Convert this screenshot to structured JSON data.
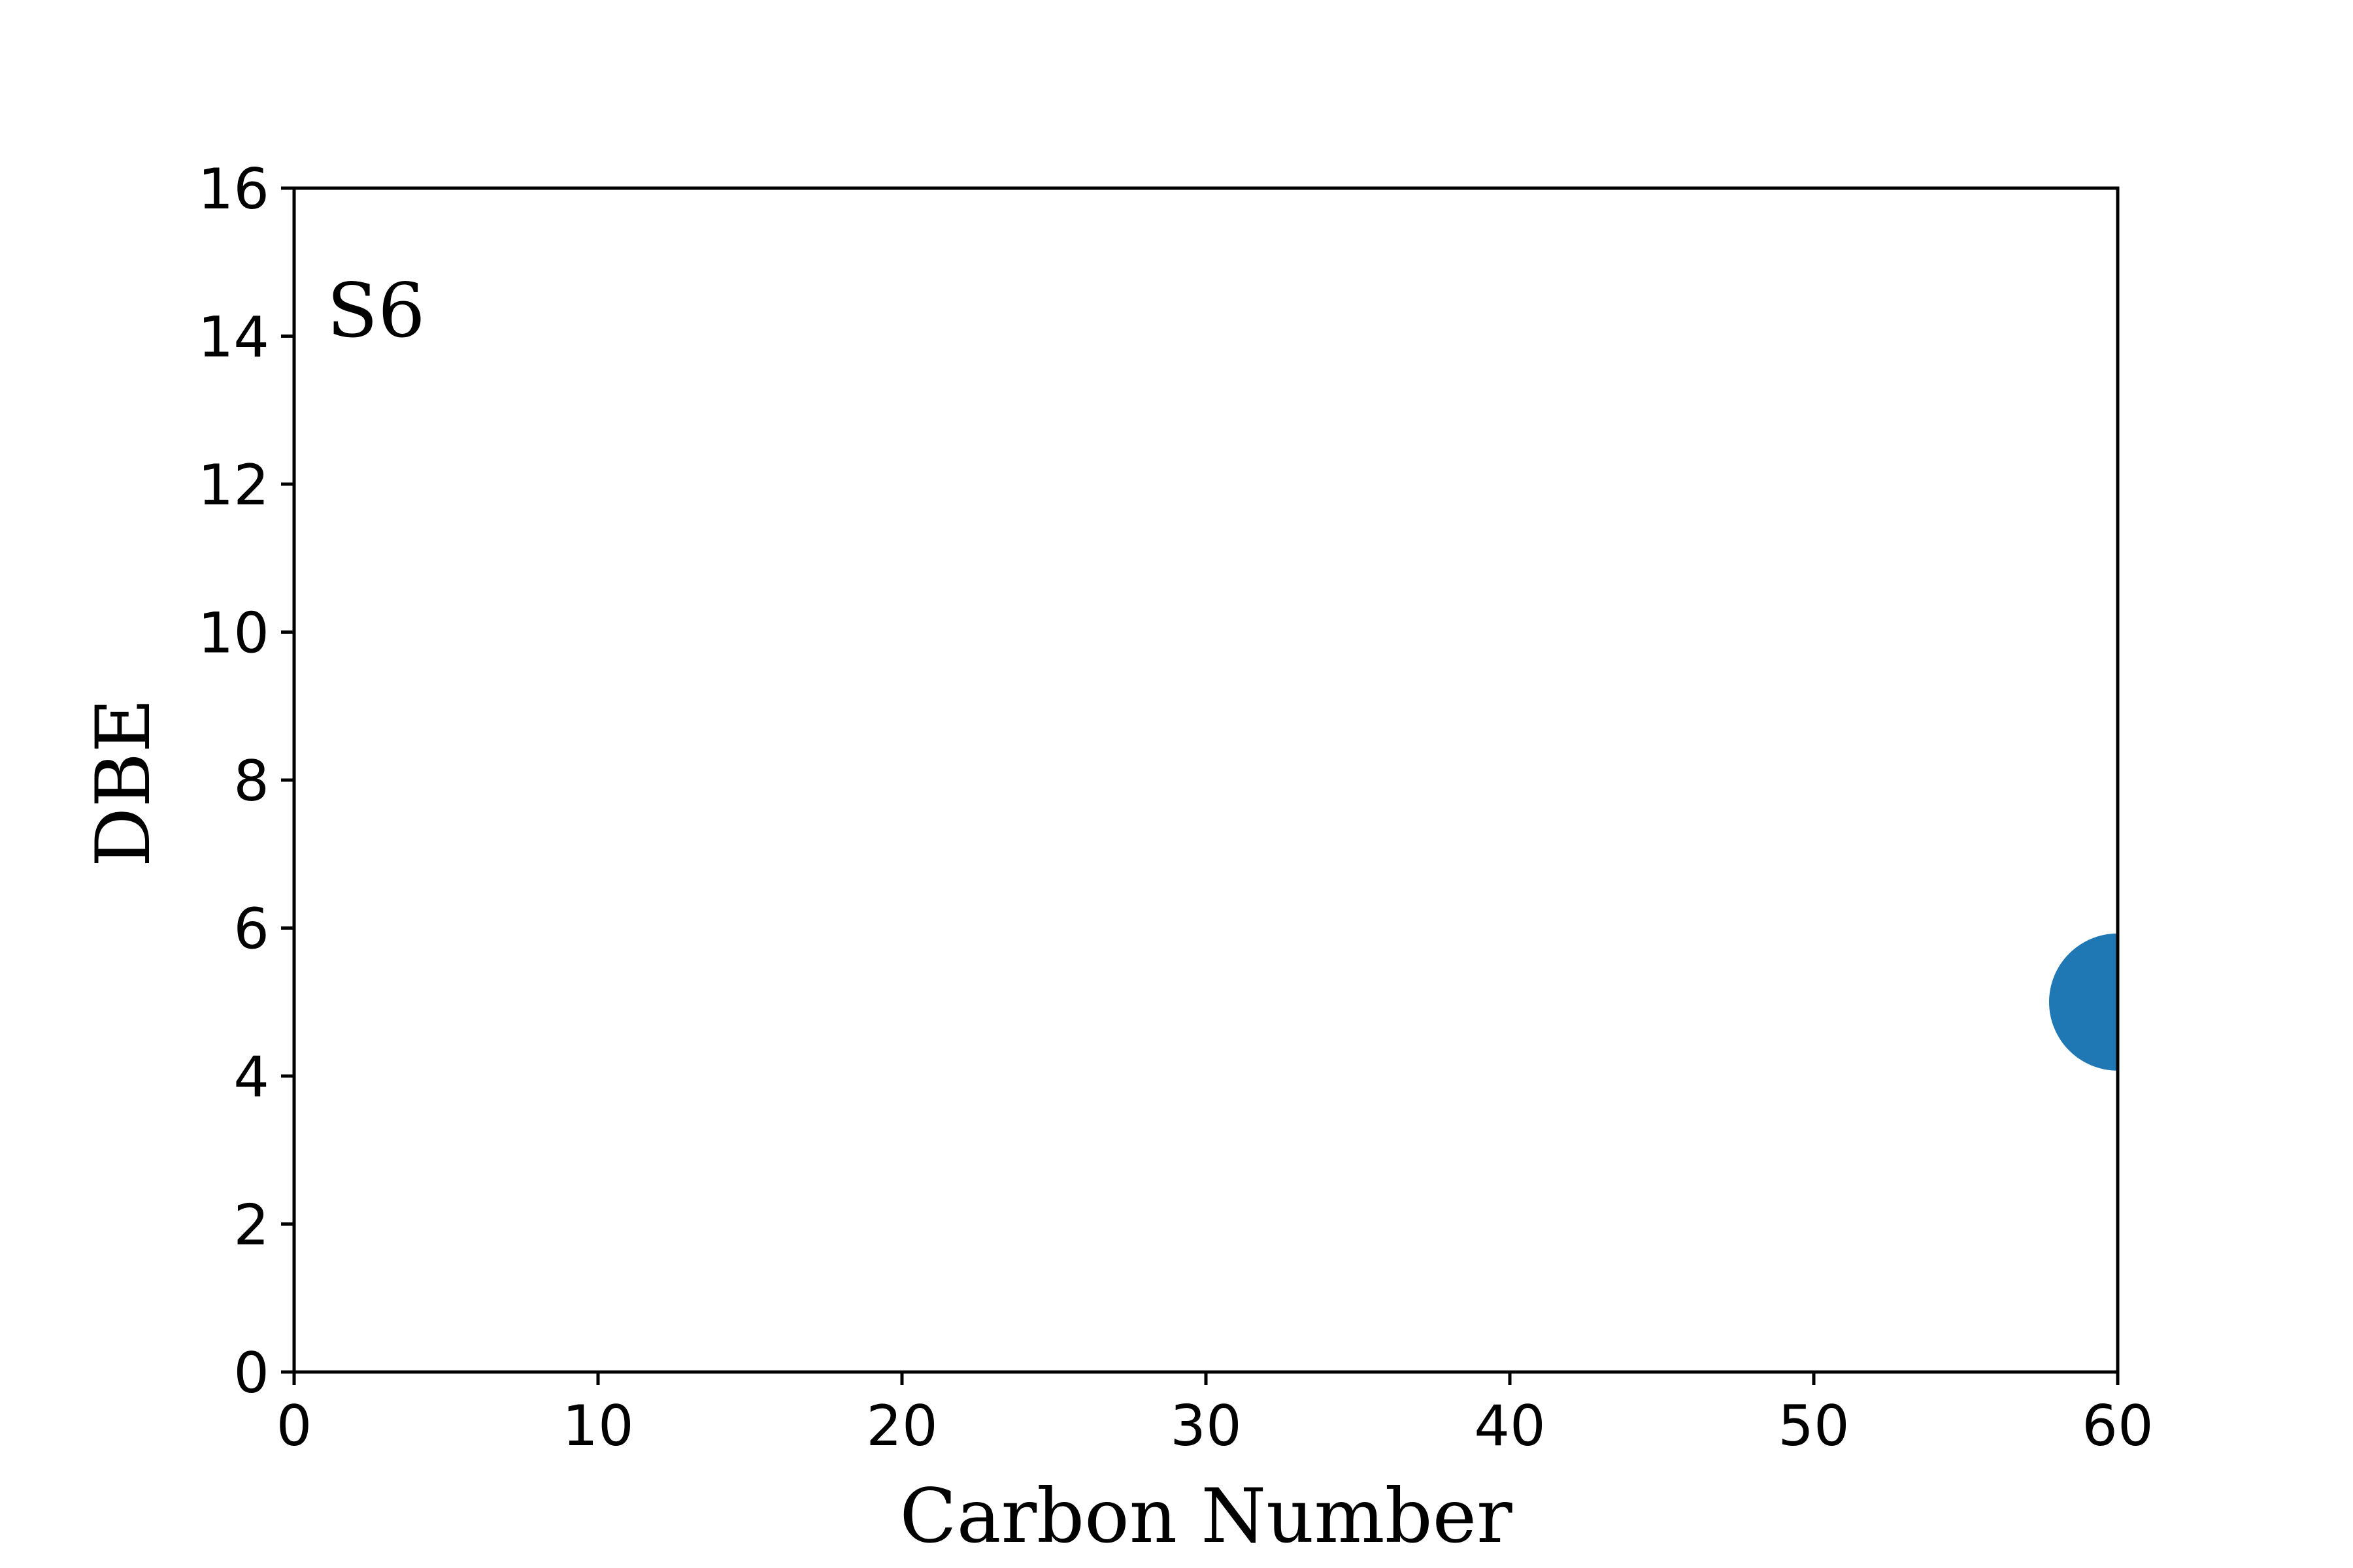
{
  "chart_data": {
    "type": "scatter",
    "xlabel": "Carbon Number",
    "ylabel": "DBE",
    "annotation": "S6",
    "xlim": [
      0,
      60
    ],
    "ylim": [
      0,
      16
    ],
    "x_ticks": [
      "0",
      "10",
      "20",
      "30",
      "40",
      "50",
      "60"
    ],
    "y_ticks": [
      "0",
      "2",
      "4",
      "6",
      "8",
      "10",
      "12",
      "14",
      "16"
    ],
    "grid": false,
    "series": [
      {
        "points": [
          {
            "x": 60,
            "y": 5
          }
        ],
        "color": "#1f77b4"
      }
    ]
  }
}
